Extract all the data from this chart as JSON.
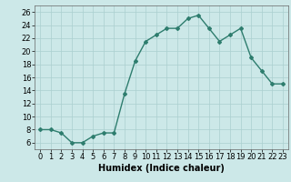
{
  "x": [
    0,
    1,
    2,
    3,
    4,
    5,
    6,
    7,
    8,
    9,
    10,
    11,
    12,
    13,
    14,
    15,
    16,
    17,
    18,
    19,
    20,
    21,
    22,
    23
  ],
  "y": [
    8,
    8,
    7.5,
    6,
    6,
    7,
    7.5,
    7.5,
    13.5,
    18.5,
    21.5,
    22.5,
    23.5,
    23.5,
    25,
    25.5,
    23.5,
    21.5,
    22.5,
    23.5,
    19,
    17,
    15,
    15
  ],
  "line_color": "#2e7d6e",
  "marker": "D",
  "markersize": 2,
  "linewidth": 1.0,
  "xlabel": "Humidex (Indice chaleur)",
  "ylim": [
    5,
    27
  ],
  "xlim": [
    -0.5,
    23.5
  ],
  "yticks": [
    6,
    8,
    10,
    12,
    14,
    16,
    18,
    20,
    22,
    24,
    26
  ],
  "xticks": [
    0,
    1,
    2,
    3,
    4,
    5,
    6,
    7,
    8,
    9,
    10,
    11,
    12,
    13,
    14,
    15,
    16,
    17,
    18,
    19,
    20,
    21,
    22,
    23
  ],
  "bg_color": "#cce8e8",
  "grid_color": "#aacfcf",
  "xlabel_fontsize": 7,
  "tick_fontsize": 6
}
